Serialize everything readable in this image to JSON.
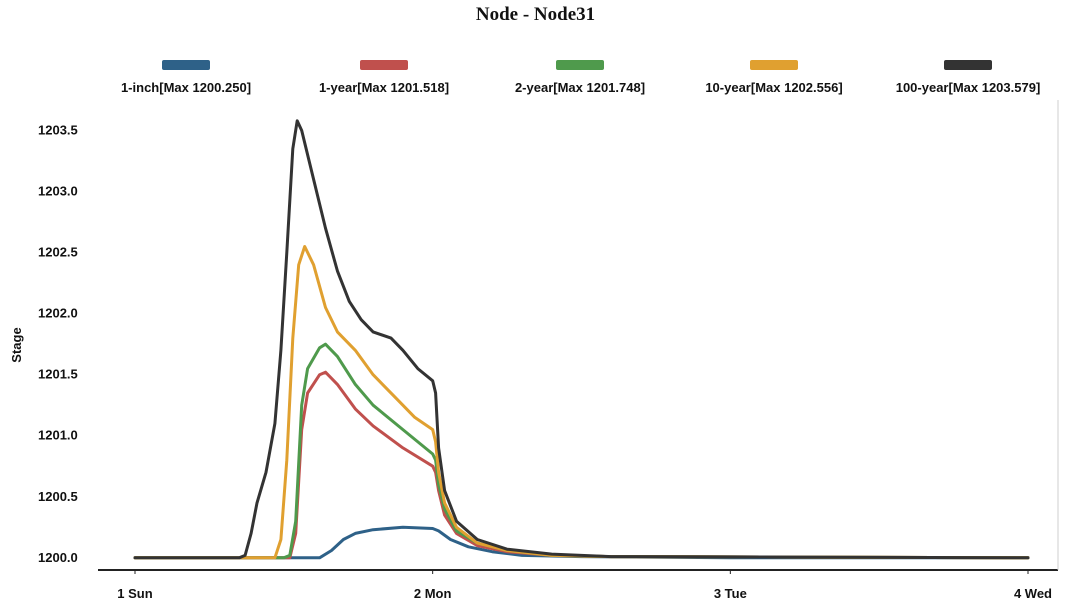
{
  "chart_data": {
    "type": "line",
    "title": "Node - Node31",
    "xlabel": "",
    "ylabel": "Stage",
    "xlim": [
      0,
      3
    ],
    "ylim": [
      1199.9,
      1203.75
    ],
    "x_ticks": [
      {
        "value": 0,
        "label": "1 Sun"
      },
      {
        "value": 1,
        "label": "2 Mon"
      },
      {
        "value": 2,
        "label": "3 Tue"
      },
      {
        "value": 3,
        "label": "4 Wed"
      }
    ],
    "y_ticks": [
      {
        "value": 1200.0,
        "label": "1200.0"
      },
      {
        "value": 1200.5,
        "label": "1200.5"
      },
      {
        "value": 1201.0,
        "label": "1201.0"
      },
      {
        "value": 1201.5,
        "label": "1201.5"
      },
      {
        "value": 1202.0,
        "label": "1202.0"
      },
      {
        "value": 1202.5,
        "label": "1202.5"
      },
      {
        "value": 1203.0,
        "label": "1203.0"
      },
      {
        "value": 1203.5,
        "label": "1203.5"
      }
    ],
    "grid": false,
    "legend_position": "top",
    "series": [
      {
        "name": "1-inch",
        "legend_label": "1-inch[Max 1200.250]",
        "color": "#2e6188",
        "points": [
          [
            0,
            1200.0
          ],
          [
            0.6,
            1200.0
          ],
          [
            0.62,
            1200.0
          ],
          [
            0.66,
            1200.06
          ],
          [
            0.7,
            1200.15
          ],
          [
            0.74,
            1200.2
          ],
          [
            0.8,
            1200.23
          ],
          [
            0.9,
            1200.25
          ],
          [
            1.0,
            1200.24
          ],
          [
            1.02,
            1200.22
          ],
          [
            1.06,
            1200.15
          ],
          [
            1.12,
            1200.09
          ],
          [
            1.2,
            1200.05
          ],
          [
            1.3,
            1200.02
          ],
          [
            1.5,
            1200.01
          ],
          [
            2.0,
            1200.0
          ],
          [
            3.0,
            1200.0
          ]
        ]
      },
      {
        "name": "1-year",
        "legend_label": "1-year[Max 1201.518]",
        "color": "#c0504d",
        "points": [
          [
            0,
            1200.0
          ],
          [
            0.5,
            1200.0
          ],
          [
            0.52,
            1200.0
          ],
          [
            0.54,
            1200.2
          ],
          [
            0.56,
            1201.05
          ],
          [
            0.58,
            1201.35
          ],
          [
            0.62,
            1201.5
          ],
          [
            0.64,
            1201.52
          ],
          [
            0.68,
            1201.42
          ],
          [
            0.74,
            1201.22
          ],
          [
            0.8,
            1201.08
          ],
          [
            0.9,
            1200.9
          ],
          [
            1.0,
            1200.75
          ],
          [
            1.01,
            1200.7
          ],
          [
            1.02,
            1200.55
          ],
          [
            1.04,
            1200.35
          ],
          [
            1.08,
            1200.2
          ],
          [
            1.15,
            1200.1
          ],
          [
            1.25,
            1200.05
          ],
          [
            1.4,
            1200.02
          ],
          [
            1.6,
            1200.01
          ],
          [
            3.0,
            1200.0
          ]
        ]
      },
      {
        "name": "2-year",
        "legend_label": "2-year[Max 1201.748]",
        "color": "#4f9a4c",
        "points": [
          [
            0,
            1200.0
          ],
          [
            0.5,
            1200.0
          ],
          [
            0.52,
            1200.02
          ],
          [
            0.54,
            1200.3
          ],
          [
            0.56,
            1201.25
          ],
          [
            0.58,
            1201.55
          ],
          [
            0.62,
            1201.72
          ],
          [
            0.64,
            1201.75
          ],
          [
            0.68,
            1201.65
          ],
          [
            0.74,
            1201.42
          ],
          [
            0.8,
            1201.25
          ],
          [
            0.9,
            1201.05
          ],
          [
            1.0,
            1200.85
          ],
          [
            1.01,
            1200.8
          ],
          [
            1.02,
            1200.6
          ],
          [
            1.04,
            1200.4
          ],
          [
            1.08,
            1200.22
          ],
          [
            1.15,
            1200.12
          ],
          [
            1.25,
            1200.06
          ],
          [
            1.4,
            1200.02
          ],
          [
            1.6,
            1200.01
          ],
          [
            3.0,
            1200.0
          ]
        ]
      },
      {
        "name": "10-year",
        "legend_label": "10-year[Max 1202.556]",
        "color": "#e0a030",
        "points": [
          [
            0,
            1200.0
          ],
          [
            0.4,
            1200.0
          ],
          [
            0.47,
            1200.0
          ],
          [
            0.49,
            1200.15
          ],
          [
            0.51,
            1200.8
          ],
          [
            0.53,
            1201.8
          ],
          [
            0.55,
            1202.4
          ],
          [
            0.57,
            1202.55
          ],
          [
            0.6,
            1202.4
          ],
          [
            0.64,
            1202.05
          ],
          [
            0.68,
            1201.85
          ],
          [
            0.74,
            1201.7
          ],
          [
            0.8,
            1201.5
          ],
          [
            0.88,
            1201.3
          ],
          [
            0.94,
            1201.15
          ],
          [
            1.0,
            1201.05
          ],
          [
            1.01,
            1200.95
          ],
          [
            1.02,
            1200.7
          ],
          [
            1.04,
            1200.45
          ],
          [
            1.08,
            1200.25
          ],
          [
            1.15,
            1200.12
          ],
          [
            1.25,
            1200.06
          ],
          [
            1.4,
            1200.02
          ],
          [
            1.6,
            1200.01
          ],
          [
            3.0,
            1200.0
          ]
        ]
      },
      {
        "name": "100-year",
        "legend_label": "100-year[Max 1203.579]",
        "color": "#333333",
        "points": [
          [
            0,
            1200.0
          ],
          [
            0.35,
            1200.0
          ],
          [
            0.37,
            1200.02
          ],
          [
            0.39,
            1200.2
          ],
          [
            0.41,
            1200.45
          ],
          [
            0.44,
            1200.7
          ],
          [
            0.47,
            1201.1
          ],
          [
            0.49,
            1201.7
          ],
          [
            0.51,
            1202.5
          ],
          [
            0.53,
            1203.35
          ],
          [
            0.545,
            1203.58
          ],
          [
            0.56,
            1203.5
          ],
          [
            0.6,
            1203.1
          ],
          [
            0.64,
            1202.7
          ],
          [
            0.68,
            1202.35
          ],
          [
            0.72,
            1202.1
          ],
          [
            0.76,
            1201.95
          ],
          [
            0.8,
            1201.85
          ],
          [
            0.86,
            1201.8
          ],
          [
            0.9,
            1201.7
          ],
          [
            0.95,
            1201.55
          ],
          [
            1.0,
            1201.45
          ],
          [
            1.01,
            1201.35
          ],
          [
            1.02,
            1200.9
          ],
          [
            1.04,
            1200.55
          ],
          [
            1.08,
            1200.3
          ],
          [
            1.15,
            1200.15
          ],
          [
            1.25,
            1200.07
          ],
          [
            1.4,
            1200.03
          ],
          [
            1.6,
            1200.01
          ],
          [
            3.0,
            1200.0
          ]
        ]
      }
    ]
  }
}
